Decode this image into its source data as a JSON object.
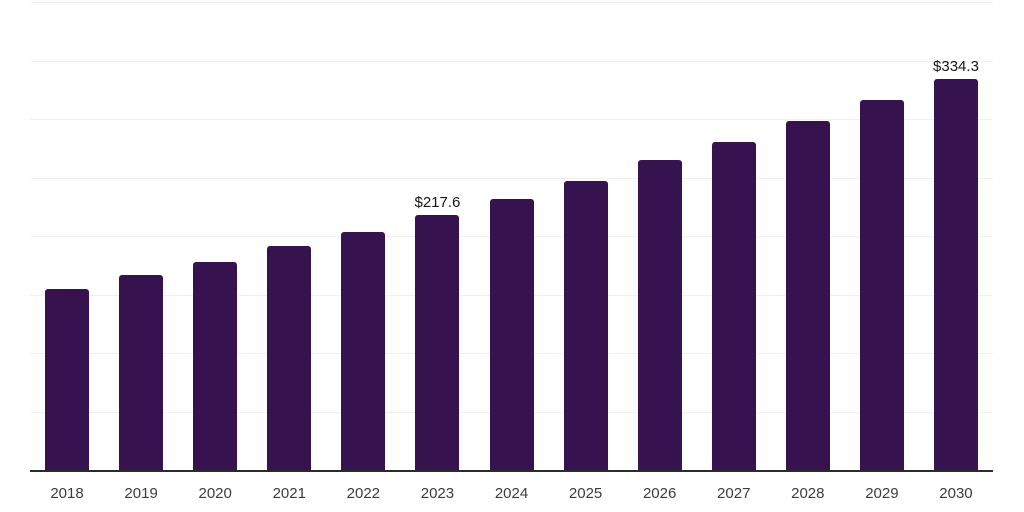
{
  "chart_data": {
    "type": "bar",
    "title": "",
    "xlabel": "",
    "ylabel": "",
    "categories": [
      "2018",
      "2019",
      "2020",
      "2021",
      "2022",
      "2023",
      "2024",
      "2025",
      "2026",
      "2027",
      "2028",
      "2029",
      "2030"
    ],
    "values": [
      154.9,
      166.5,
      178.2,
      191.3,
      203.6,
      217.6,
      231.5,
      247.4,
      264.6,
      280.2,
      297.9,
      315.9,
      334.3
    ],
    "data_labels": [
      {
        "category": "2023",
        "text": "$217.6"
      },
      {
        "category": "2030",
        "text": "$334.3"
      }
    ],
    "ylim": [
      0,
      400
    ],
    "gridline_step": 50,
    "grid": true,
    "legend": "none",
    "y_tick_labels_visible": false,
    "colors": {
      "bar": "#36124E",
      "gridline": "#f1f1f1",
      "axis_line": "#2b2b2b",
      "tick_label": "#3c3c3c",
      "data_label": "#161616",
      "background": "#ffffff"
    }
  }
}
